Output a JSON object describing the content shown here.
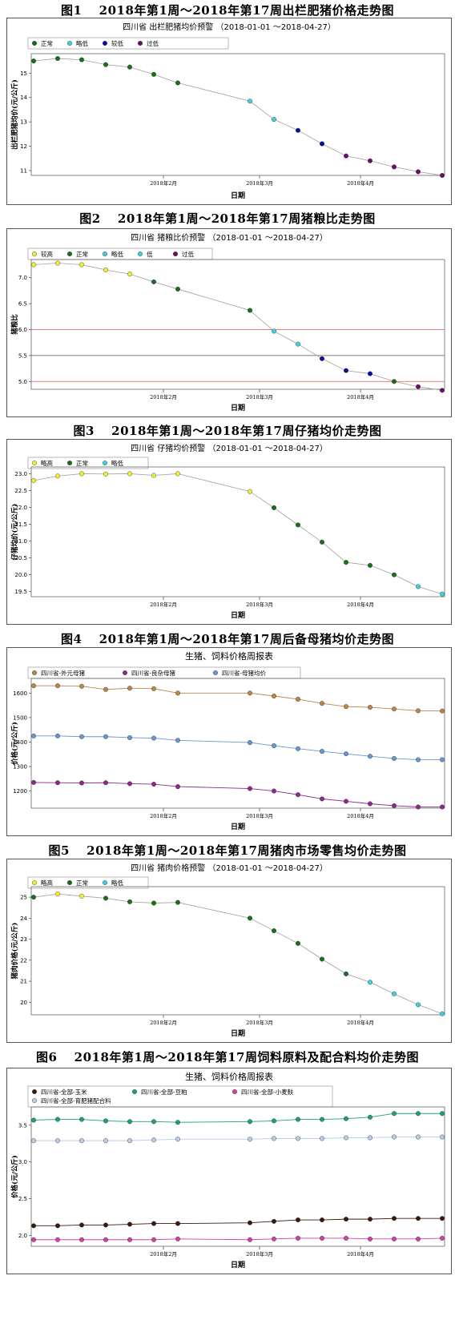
{
  "figures": [
    {
      "caption": "图1　 2018年第1周～2018年第17周出栏肥猪价格走势图"
    },
    {
      "caption": "图2　 2018年第1周～2018年第17周猪粮比走势图"
    },
    {
      "caption": "图3　 2018年第1周～2018年第17周仔猪均价走势图"
    },
    {
      "caption": "图4　 2018年第1周～2018年第17周后备母猪均价走势图"
    },
    {
      "caption": "图5　 2018年第1周～2018年第17周猪肉市场零售均价走势图"
    },
    {
      "caption": "图6　 2018年第1周～2018年第17周饲料原料及配合料均价走势图"
    }
  ],
  "colors": {
    "正常": "#1a6e1a",
    "略低": "#3ecfe0",
    "较低": "#0a0aa8",
    "过低": "#6a0e6a",
    "略高": "#f0ee30",
    "较高": "#f0ee30"
  },
  "chart_data": [
    {
      "type": "line",
      "title": "四川省 出栏肥猪均价预警 （2018-01-01 ～2018-04-27）",
      "xlabel": "日期",
      "ylabel": "出栏肥猪均价(元/公斤)",
      "x_ticks": [
        "2018年2月",
        "2018年3月",
        "2018年4月"
      ],
      "x_tick_weeks": [
        5.4,
        9.4,
        13.6
      ],
      "ylim": [
        10.8,
        15.8
      ],
      "y_ticks": [
        11,
        12,
        13,
        14,
        15
      ],
      "legend": [
        "正常",
        "略低",
        "较低",
        "过低"
      ],
      "series": [
        {
          "values": [
            15.5,
            15.6,
            15.55,
            15.35,
            15.25,
            14.95,
            14.6,
            null,
            null,
            13.85,
            13.1,
            12.65,
            12.1,
            11.6,
            11.4,
            11.15,
            10.95,
            10.8
          ],
          "levels": [
            "正常",
            "正常",
            "正常",
            "正常",
            "正常",
            "正常",
            "正常",
            null,
            null,
            "略低",
            "略低",
            "较低",
            "较低",
            "过低",
            "过低",
            "过低",
            "过低",
            "过低"
          ]
        }
      ]
    },
    {
      "type": "line",
      "title": "四川省 猪粮比价预警 （2018-01-01 ～2018-04-27）",
      "xlabel": "日期",
      "ylabel": "猪粮比",
      "x_ticks": [
        "2018年2月",
        "2018年3月",
        "2018年4月"
      ],
      "x_tick_weeks": [
        5.4,
        9.4,
        13.6
      ],
      "ylim": [
        4.85,
        7.35
      ],
      "y_ticks": [
        5.0,
        5.5,
        6.0,
        6.5,
        7.0
      ],
      "y_tick_labels": [
        "5.0",
        "5.5",
        "6.0",
        "6.5",
        "7.0"
      ],
      "ref_lines": [
        {
          "y": 6.0,
          "color": "#e05050"
        },
        {
          "y": 5.5,
          "color": "#555555"
        },
        {
          "y": 5.0,
          "color": "#e05050"
        }
      ],
      "legend": [
        "较高",
        "正常",
        "略低",
        "低",
        "过低"
      ],
      "series": [
        {
          "values": [
            7.25,
            7.28,
            7.25,
            7.15,
            7.07,
            6.92,
            6.78,
            null,
            null,
            6.37,
            5.97,
            5.72,
            5.44,
            5.21,
            5.15,
            5.0,
            4.9,
            4.83
          ],
          "levels": [
            "较高",
            "较高",
            "较高",
            "较高",
            "较高",
            "正常",
            "正常",
            null,
            null,
            "正常",
            "略低",
            "略低",
            "较低",
            "较低",
            "较低",
            "正常",
            "过低",
            "过低"
          ]
        }
      ]
    },
    {
      "type": "line",
      "title": "四川省 仔猪均价预警 （2018-01-01 ～2018-04-27）",
      "xlabel": "日期",
      "ylabel": "仔猪均价(元/公斤)",
      "x_ticks": [
        "2018年2月",
        "2018年3月",
        "2018年4月"
      ],
      "x_tick_weeks": [
        5.4,
        9.4,
        13.6
      ],
      "ylim": [
        19.35,
        23.2
      ],
      "y_ticks": [
        19.5,
        20.0,
        20.5,
        21.0,
        21.5,
        22.0,
        22.5,
        23.0
      ],
      "y_tick_labels": [
        "19.5",
        "20.0",
        "20.5",
        "21.0",
        "21.5",
        "22.0",
        "22.5",
        "23.0"
      ],
      "legend": [
        "略高",
        "正常",
        "略低"
      ],
      "series": [
        {
          "values": [
            22.8,
            22.93,
            23.0,
            22.99,
            23.0,
            22.95,
            23.0,
            null,
            null,
            22.47,
            21.99,
            21.48,
            20.97,
            20.37,
            20.28,
            20.0,
            19.65,
            19.43
          ],
          "levels": [
            "略高",
            "略高",
            "略高",
            "略高",
            "略高",
            "略高",
            "略高",
            null,
            null,
            "略高",
            "正常",
            "正常",
            "正常",
            "正常",
            "正常",
            "正常",
            "略低",
            "略低"
          ]
        }
      ]
    },
    {
      "type": "line",
      "title": "生猪、饲料价格周报表",
      "xlabel": "日期",
      "ylabel": "价格(元/公斤)",
      "x_ticks": [
        "2018年2月",
        "2018年3月",
        "2018年4月"
      ],
      "x_tick_weeks": [
        5.4,
        9.4,
        13.6
      ],
      "ylim": [
        1130,
        1660
      ],
      "y_ticks": [
        1200,
        1300,
        1400,
        1500,
        1600
      ],
      "legend": [
        "四川省-外元母猪",
        "四川省-良杂母猪",
        "四川省-母猪均价"
      ],
      "series": [
        {
          "name": "四川省-全部-外元母猪",
          "color": "#b8864a",
          "values": [
            1630,
            1630,
            1628,
            1615,
            1620,
            1618,
            1600,
            null,
            null,
            1600,
            1588,
            1575,
            1558,
            1545,
            1542,
            1535,
            1528,
            1527
          ]
        },
        {
          "name": "四川省-全部-良杂母猪",
          "color": "#8a2a8a",
          "values": [
            1235,
            1234,
            1233,
            1234,
            1230,
            1228,
            1218,
            null,
            null,
            1210,
            1200,
            1185,
            1168,
            1158,
            1148,
            1140,
            1135,
            1135
          ]
        },
        {
          "name": "四川省-全部-母猪均价",
          "color": "#6a96d0",
          "values": [
            1425,
            1425,
            1422,
            1422,
            1418,
            1416,
            1407,
            null,
            null,
            1398,
            1385,
            1373,
            1362,
            1352,
            1342,
            1333,
            1328,
            1328
          ]
        }
      ]
    },
    {
      "type": "line",
      "title": "四川省 猪肉价格预警 （2018-01-01 ～2018-04-27）",
      "xlabel": "日期",
      "ylabel": "猪肉价格(元/公斤)",
      "x_ticks": [
        "2018年2月",
        "2018年3月",
        "2018年4月"
      ],
      "x_tick_weeks": [
        5.4,
        9.4,
        13.6
      ],
      "ylim": [
        19.4,
        25.5
      ],
      "y_ticks": [
        20,
        21,
        22,
        23,
        24,
        25
      ],
      "legend": [
        "略高",
        "正常",
        "略低"
      ],
      "series": [
        {
          "values": [
            25.0,
            25.15,
            25.05,
            24.95,
            24.78,
            24.72,
            24.75,
            null,
            null,
            24.0,
            23.4,
            22.8,
            22.05,
            21.35,
            20.95,
            20.4,
            19.88,
            19.45
          ],
          "levels": [
            "正常",
            "略高",
            "略高",
            "正常",
            "正常",
            "正常",
            "正常",
            null,
            null,
            "正常",
            "正常",
            "正常",
            "正常",
            "正常",
            "略低",
            "略低",
            "略低",
            "略低"
          ]
        }
      ]
    },
    {
      "type": "line",
      "title": "生猪、饲料价格周报表",
      "xlabel": "日期",
      "ylabel": "价格(元/公斤)",
      "x_ticks": [
        "2018年2月",
        "2018年3月",
        "2018年4月"
      ],
      "x_tick_weeks": [
        5.4,
        9.4,
        13.6
      ],
      "ylim": [
        1.85,
        3.75
      ],
      "y_ticks": [
        2.0,
        2.5,
        3.0,
        3.5
      ],
      "y_tick_labels": [
        "2.0",
        "2.5",
        "3.0",
        "3.5"
      ],
      "legend": [
        "四川省-全部-玉米",
        "四川省-全部-豆粕",
        "四川省-全部-小麦麸",
        "四川省-全部-育肥猪配合料"
      ],
      "series": [
        {
          "name": "四川省-全部-玉米",
          "color": "#3a1a10",
          "values": [
            2.13,
            2.13,
            2.14,
            2.14,
            2.15,
            2.16,
            2.16,
            null,
            null,
            2.17,
            2.19,
            2.21,
            2.21,
            2.22,
            2.22,
            2.23,
            2.23,
            2.23
          ]
        },
        {
          "name": "四川省-全部-豆粕",
          "color": "#20a070",
          "values": [
            3.57,
            3.58,
            3.58,
            3.56,
            3.55,
            3.55,
            3.54,
            null,
            null,
            3.55,
            3.56,
            3.58,
            3.58,
            3.59,
            3.61,
            3.66,
            3.66,
            3.66
          ]
        },
        {
          "name": "四川省-全部-小麦麸",
          "color": "#d040a0",
          "values": [
            1.94,
            1.94,
            1.94,
            1.94,
            1.94,
            1.94,
            1.95,
            null,
            null,
            1.94,
            1.95,
            1.96,
            1.96,
            1.96,
            1.95,
            1.95,
            1.95,
            1.96
          ]
        },
        {
          "name": "四川省-全部-育肥猪配合料",
          "color": "#b8cce8",
          "values": [
            3.29,
            3.29,
            3.29,
            3.29,
            3.29,
            3.3,
            3.31,
            null,
            null,
            3.31,
            3.32,
            3.32,
            3.32,
            3.33,
            3.33,
            3.34,
            3.34,
            3.34
          ]
        }
      ]
    }
  ]
}
